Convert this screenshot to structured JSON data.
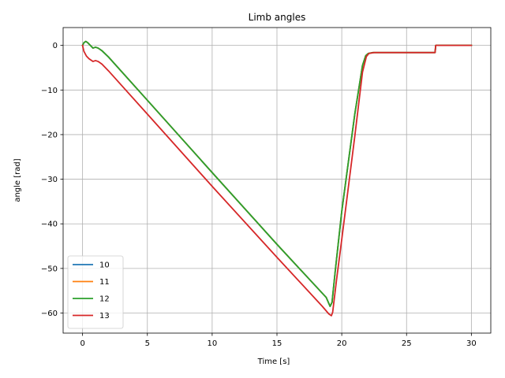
{
  "chart_data": {
    "type": "line",
    "title": "Limb angles",
    "xlabel": "Time [s]",
    "ylabel": "angle [rad]",
    "xlim": [
      -1.5,
      31.5
    ],
    "ylim": [
      -64.5,
      4
    ],
    "xticks": [
      0,
      5,
      10,
      15,
      20,
      25,
      30
    ],
    "yticks": [
      0,
      -10,
      -20,
      -30,
      -40,
      -50,
      -60
    ],
    "grid": true,
    "legend_position": "lower-left",
    "series": [
      {
        "name": "10",
        "color": "#1f77b4",
        "x": [
          0,
          0.1,
          0.25,
          0.4,
          0.6,
          0.8,
          1.0,
          1.2,
          1.5,
          2,
          5,
          10,
          15,
          18.8,
          19.1,
          19.25,
          19.5,
          20,
          21,
          21.6,
          21.85,
          22.05,
          22.4,
          25,
          27.2,
          27.25,
          28,
          30
        ],
        "y": [
          0,
          0.6,
          0.9,
          0.6,
          0.0,
          -0.6,
          -0.4,
          -0.6,
          -1.2,
          -2.6,
          -12.3,
          -28.5,
          -44.6,
          -56.5,
          -58.5,
          -57.6,
          -50.5,
          -37.2,
          -15.5,
          -4.5,
          -2.3,
          -1.8,
          -1.6,
          -1.6,
          -1.6,
          0,
          0,
          0
        ]
      },
      {
        "name": "11",
        "color": "#ff7f0e",
        "x": [
          0,
          0.1,
          0.25,
          0.4,
          0.6,
          0.8,
          1.0,
          1.2,
          1.5,
          2,
          5,
          10,
          15,
          18.8,
          19.1,
          19.25,
          19.5,
          20,
          21,
          21.6,
          21.85,
          22.05,
          22.4,
          25,
          27.2,
          27.25,
          28,
          30
        ],
        "y": [
          0,
          0.6,
          0.9,
          0.6,
          0.0,
          -0.6,
          -0.4,
          -0.6,
          -1.2,
          -2.6,
          -12.3,
          -28.5,
          -44.6,
          -56.5,
          -58.5,
          -57.6,
          -50.5,
          -37.2,
          -15.5,
          -4.5,
          -2.3,
          -1.8,
          -1.6,
          -1.6,
          -1.6,
          0,
          0,
          0
        ]
      },
      {
        "name": "12",
        "color": "#2ca02c",
        "x": [
          0,
          0.1,
          0.25,
          0.4,
          0.6,
          0.8,
          1.0,
          1.2,
          1.5,
          2,
          5,
          10,
          15,
          18.8,
          19.1,
          19.25,
          19.5,
          20,
          21,
          21.6,
          21.85,
          22.05,
          22.4,
          25,
          27.2,
          27.25,
          28,
          30
        ],
        "y": [
          0,
          0.6,
          0.9,
          0.6,
          0.0,
          -0.6,
          -0.4,
          -0.6,
          -1.2,
          -2.6,
          -12.3,
          -28.5,
          -44.6,
          -56.5,
          -58.5,
          -57.6,
          -50.5,
          -37.2,
          -15.5,
          -4.5,
          -2.3,
          -1.8,
          -1.6,
          -1.6,
          -1.6,
          0,
          0,
          0
        ]
      },
      {
        "name": "13",
        "color": "#d62728",
        "x": [
          0,
          0.1,
          0.3,
          0.5,
          0.8,
          1.0,
          1.2,
          1.5,
          2,
          5,
          10,
          15,
          18.5,
          19.0,
          19.2,
          19.3,
          19.6,
          20,
          21,
          21.6,
          21.9,
          22.1,
          22.5,
          25,
          27.2,
          27.25,
          28,
          30
        ],
        "y": [
          0,
          -1.3,
          -2.4,
          -3.0,
          -3.6,
          -3.4,
          -3.6,
          -4.2,
          -5.7,
          -15.4,
          -31.6,
          -47.5,
          -58.5,
          -60.2,
          -60.6,
          -59.8,
          -52.5,
          -43.5,
          -20.5,
          -6.0,
          -2.5,
          -1.8,
          -1.6,
          -1.6,
          -1.6,
          0,
          0,
          0
        ]
      }
    ]
  }
}
